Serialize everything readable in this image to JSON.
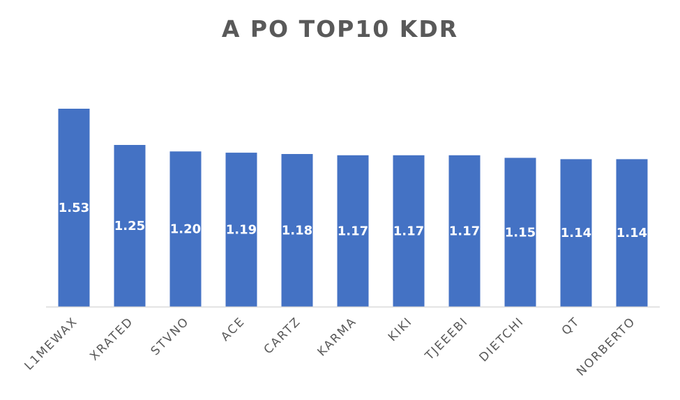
{
  "chart_data": {
    "type": "bar",
    "title": "A PO TOP10 KDR",
    "xlabel": "",
    "ylabel": "",
    "categories": [
      "L1MEWAX",
      "XRATED",
      "STVNO",
      "ACE",
      "CARTZ",
      "KARMA",
      "KIKI",
      "TJEEEBI",
      "DIETCHI",
      "QT",
      "NORBERTO"
    ],
    "values": [
      1.53,
      1.25,
      1.2,
      1.19,
      1.18,
      1.17,
      1.17,
      1.17,
      1.15,
      1.14,
      1.14
    ],
    "value_labels": [
      "1.53",
      "1.25",
      "1.20",
      "1.19",
      "1.18",
      "1.17",
      "1.17",
      "1.17",
      "1.15",
      "1.14",
      "1.14"
    ],
    "ylim": [
      0,
      1.53
    ],
    "grid": false,
    "legend": "none",
    "bar_color": "#4472C4",
    "axis_color": "#D9D9D9",
    "text_color": "#595959"
  }
}
